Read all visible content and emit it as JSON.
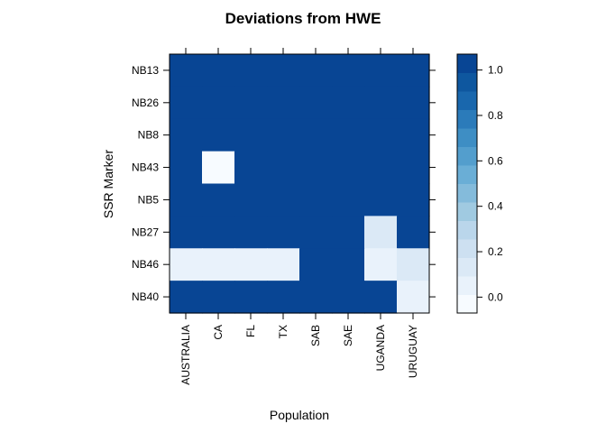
{
  "chart_data": {
    "type": "heatmap",
    "title": "Deviations from HWE",
    "xlabel": "Population",
    "ylabel": "SSR Marker",
    "x_categories": [
      "AUSTRALIA",
      "CA",
      "FL",
      "TX",
      "SAB",
      "SAE",
      "UGANDA",
      "URUGUAY"
    ],
    "y_categories": [
      "NB13",
      "NB26",
      "NB8",
      "NB43",
      "NB5",
      "NB27",
      "NB46",
      "NB40"
    ],
    "values": [
      [
        1,
        1,
        1,
        1,
        1,
        1,
        1,
        1
      ],
      [
        1,
        1,
        1,
        1,
        1,
        1,
        1,
        1
      ],
      [
        1,
        1,
        1,
        1,
        1,
        1,
        1,
        1
      ],
      [
        1,
        0,
        1,
        1,
        1,
        1,
        1,
        1
      ],
      [
        1,
        1,
        1,
        1,
        1,
        1,
        1,
        1
      ],
      [
        1,
        1,
        1,
        1,
        1,
        1,
        0.12,
        1
      ],
      [
        0.02,
        0.02,
        0.08,
        0.02,
        1,
        1,
        0.03,
        0.1
      ],
      [
        1,
        1,
        1,
        1,
        1,
        1,
        1,
        0.02
      ]
    ],
    "colorbar": {
      "range": [
        -0.07,
        1.07
      ],
      "ticks": [
        0.0,
        0.2,
        0.4,
        0.6,
        0.8,
        1.0
      ],
      "tick_labels": [
        "0.0",
        "0.2",
        "0.4",
        "0.6",
        "0.8",
        "1.0"
      ],
      "palette": [
        "#F7FBFF",
        "#E9F2FB",
        "#DBE9F6",
        "#CDE0F1",
        "#BAD6EB",
        "#A0CAE1",
        "#84BBDB",
        "#6AAED6",
        "#539ECD",
        "#3E8EC4",
        "#2B7BBA",
        "#1967AD",
        "#0E579F",
        "#084594"
      ]
    }
  }
}
